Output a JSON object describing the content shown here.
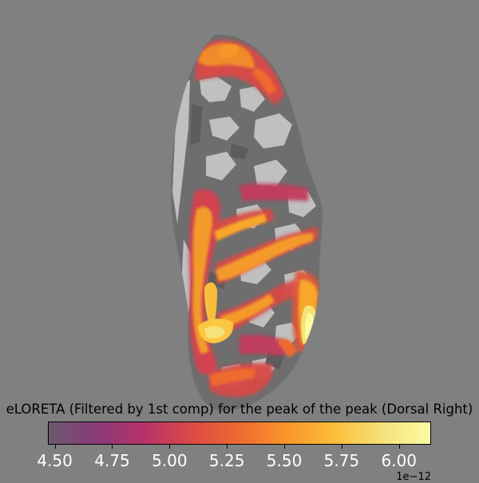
{
  "colorbar": {
    "title": "eLORETA (Filtered by 1st comp) for the peak of the peak (Dorsal Right)",
    "ticks": [
      "4.50",
      "4.75",
      "5.00",
      "5.25",
      "5.50",
      "5.75",
      "6.00"
    ],
    "tick_values": [
      4.5,
      4.75,
      5.0,
      5.25,
      5.5,
      5.75,
      6.0
    ],
    "range": [
      4.47,
      6.14
    ],
    "exponent": "1e−12",
    "colormap": "inferno-alpha",
    "colors": [
      "#6b5a70",
      "#8a3a78",
      "#b8326a",
      "#dc4a47",
      "#ef6a2f",
      "#f8962a",
      "#fbbe3a",
      "#f6e27a",
      "#fbfba4"
    ]
  },
  "scene": {
    "background": "#808080",
    "view": "dorsal",
    "hemisphere": "right"
  }
}
